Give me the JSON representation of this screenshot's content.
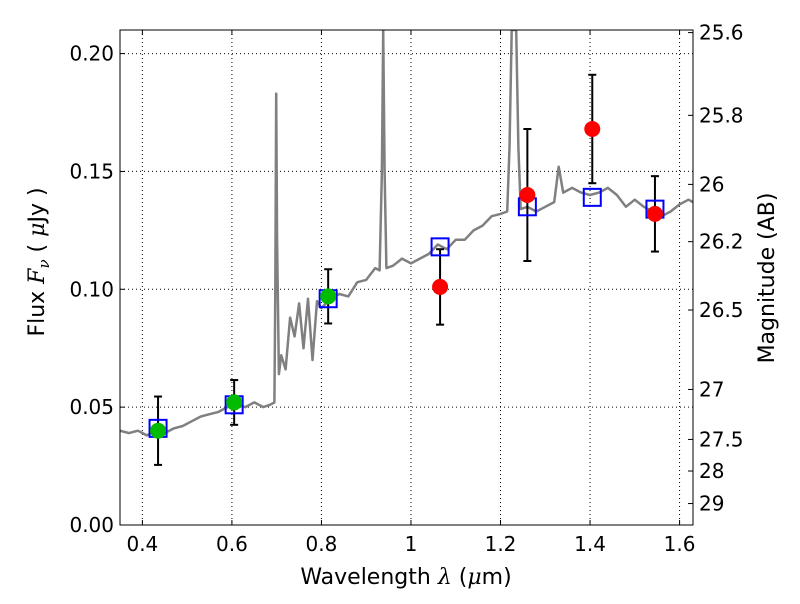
{
  "chart_data": {
    "type": "scatter",
    "xlabel": "Wavelength λ (μm)",
    "ylabel": "Flux F_ν ( μJy )",
    "ylabel_parts": [
      "Flux ",
      "F",
      "ν",
      " ( ",
      "μ",
      "Jy )"
    ],
    "xlabel_parts": [
      "Wavelength  ",
      "λ",
      " (",
      "μ",
      "m)"
    ],
    "y2label": "Magnitude (AB)",
    "xlim": [
      0.35,
      1.63
    ],
    "ylim": [
      0.0,
      0.21
    ],
    "grid": true,
    "x_ticks": [
      0.4,
      0.6,
      0.8,
      1.0,
      1.2,
      1.4,
      1.6
    ],
    "x_tick_labels": [
      "0.4",
      "0.6",
      "0.8",
      "1",
      "1.2",
      "1.4",
      "1.6"
    ],
    "y_ticks": [
      0.0,
      0.05,
      0.1,
      0.15,
      0.2
    ],
    "y_tick_labels": [
      "0.00",
      "0.05",
      "0.10",
      "0.15",
      "0.20"
    ],
    "y2_ticks": [
      {
        "label": "25.6",
        "flux": 0.2089
      },
      {
        "label": "25.8",
        "flux": 0.1738
      },
      {
        "label": "26",
        "flux": 0.1445
      },
      {
        "label": "26.2",
        "flux": 0.1202
      },
      {
        "label": "26.5",
        "flux": 0.0912
      },
      {
        "label": "27",
        "flux": 0.0575
      },
      {
        "label": "27.5",
        "flux": 0.0363
      },
      {
        "label": "28",
        "flux": 0.0229
      },
      {
        "label": "29",
        "flux": 0.0091
      }
    ],
    "colors": {
      "spectrum": "#808080",
      "model_box": "#0000ff",
      "optical": "#00bb00",
      "infrared": "#ff0000",
      "errorbar": "#000000"
    },
    "series": [
      {
        "kind": "spectrum",
        "points": [
          [
            0.35,
            0.04
          ],
          [
            0.37,
            0.039
          ],
          [
            0.39,
            0.04
          ],
          [
            0.41,
            0.038
          ],
          [
            0.43,
            0.04
          ],
          [
            0.45,
            0.039
          ],
          [
            0.47,
            0.041
          ],
          [
            0.49,
            0.042
          ],
          [
            0.51,
            0.044
          ],
          [
            0.53,
            0.046
          ],
          [
            0.55,
            0.047
          ],
          [
            0.57,
            0.048
          ],
          [
            0.59,
            0.05
          ],
          [
            0.61,
            0.051
          ],
          [
            0.63,
            0.05
          ],
          [
            0.65,
            0.052
          ],
          [
            0.67,
            0.05
          ],
          [
            0.685,
            0.051
          ],
          [
            0.695,
            0.052
          ],
          [
            0.697,
            0.1
          ],
          [
            0.699,
            0.183
          ],
          [
            0.701,
            0.12
          ],
          [
            0.705,
            0.064
          ],
          [
            0.71,
            0.072
          ],
          [
            0.72,
            0.066
          ],
          [
            0.73,
            0.088
          ],
          [
            0.74,
            0.08
          ],
          [
            0.75,
            0.094
          ],
          [
            0.76,
            0.075
          ],
          [
            0.77,
            0.096
          ],
          [
            0.78,
            0.07
          ],
          [
            0.79,
            0.095
          ],
          [
            0.8,
            0.092
          ],
          [
            0.82,
            0.096
          ],
          [
            0.84,
            0.098
          ],
          [
            0.86,
            0.097
          ],
          [
            0.88,
            0.103
          ],
          [
            0.9,
            0.104
          ],
          [
            0.92,
            0.109
          ],
          [
            0.93,
            0.108
          ],
          [
            0.935,
            0.15
          ],
          [
            0.938,
            0.21
          ],
          [
            0.941,
            0.15
          ],
          [
            0.945,
            0.109
          ],
          [
            0.96,
            0.11
          ],
          [
            0.98,
            0.113
          ],
          [
            1.0,
            0.111
          ],
          [
            1.02,
            0.113
          ],
          [
            1.04,
            0.115
          ],
          [
            1.06,
            0.119
          ],
          [
            1.08,
            0.117
          ],
          [
            1.1,
            0.121
          ],
          [
            1.12,
            0.121
          ],
          [
            1.14,
            0.125
          ],
          [
            1.16,
            0.127
          ],
          [
            1.18,
            0.131
          ],
          [
            1.2,
            0.132
          ],
          [
            1.215,
            0.133
          ],
          [
            1.22,
            0.16
          ],
          [
            1.225,
            0.21
          ],
          [
            1.235,
            0.21
          ],
          [
            1.24,
            0.16
          ],
          [
            1.245,
            0.134
          ],
          [
            1.26,
            0.135
          ],
          [
            1.28,
            0.133
          ],
          [
            1.3,
            0.135
          ],
          [
            1.32,
            0.137
          ],
          [
            1.33,
            0.152
          ],
          [
            1.34,
            0.141
          ],
          [
            1.36,
            0.143
          ],
          [
            1.38,
            0.141
          ],
          [
            1.4,
            0.14
          ],
          [
            1.42,
            0.141
          ],
          [
            1.44,
            0.143
          ],
          [
            1.46,
            0.14
          ],
          [
            1.48,
            0.135
          ],
          [
            1.5,
            0.138
          ],
          [
            1.52,
            0.135
          ],
          [
            1.54,
            0.133
          ],
          [
            1.56,
            0.131
          ],
          [
            1.58,
            0.133
          ],
          [
            1.6,
            0.136
          ],
          [
            1.62,
            0.138
          ],
          [
            1.63,
            0.137
          ]
        ]
      },
      {
        "kind": "model",
        "points": [
          [
            0.435,
            0.041
          ],
          [
            0.605,
            0.051
          ],
          [
            0.815,
            0.096
          ],
          [
            1.065,
            0.118
          ],
          [
            1.26,
            0.135
          ],
          [
            1.405,
            0.139
          ],
          [
            1.545,
            0.134
          ]
        ]
      },
      {
        "kind": "optical",
        "points": [
          {
            "x": 0.435,
            "y": 0.04,
            "err": 0.0145
          },
          {
            "x": 0.605,
            "y": 0.052,
            "err": 0.0095
          },
          {
            "x": 0.815,
            "y": 0.097,
            "err": 0.0115
          }
        ]
      },
      {
        "kind": "infrared",
        "points": [
          {
            "x": 1.065,
            "y": 0.101,
            "err": 0.016
          },
          {
            "x": 1.26,
            "y": 0.14,
            "err": 0.028
          },
          {
            "x": 1.405,
            "y": 0.168,
            "err": 0.023
          },
          {
            "x": 1.545,
            "y": 0.132,
            "err": 0.016
          }
        ]
      }
    ]
  }
}
